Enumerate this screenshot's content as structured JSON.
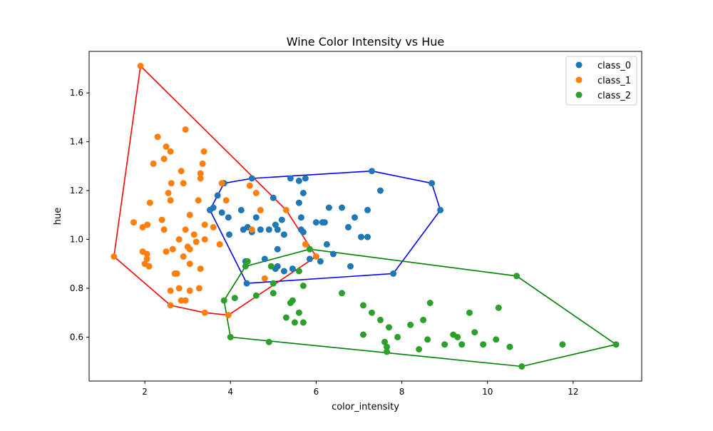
{
  "chart_data": {
    "type": "scatter",
    "title": "Wine Color Intensity vs Hue",
    "xlabel": "color_intensity",
    "ylabel": "hue",
    "xlim": [
      0.7,
      13.6
    ],
    "ylim": [
      0.42,
      1.77
    ],
    "xticks": [
      2,
      4,
      6,
      8,
      10,
      12
    ],
    "yticks": [
      0.6,
      0.8,
      1.0,
      1.2,
      1.4,
      1.6
    ],
    "xtick_labels": [
      "2",
      "4",
      "6",
      "8",
      "10",
      "12"
    ],
    "ytick_labels": [
      "0.6",
      "0.8",
      "1.0",
      "1.2",
      "1.4",
      "1.6"
    ],
    "grid": false,
    "legend_position": "top-right",
    "series": [
      {
        "name": "class_0",
        "color": "#1f77b4",
        "hull_color": "#0000ff",
        "points": [
          [
            3.52,
            1.12
          ],
          [
            3.6,
            1.13
          ],
          [
            3.7,
            1.18
          ],
          [
            3.8,
            1.11
          ],
          [
            3.85,
            1.23
          ],
          [
            3.95,
            1.09
          ],
          [
            3.97,
            1.02
          ],
          [
            4.25,
            1.12
          ],
          [
            4.3,
            1.04
          ],
          [
            4.35,
            0.91
          ],
          [
            4.38,
            0.82
          ],
          [
            4.4,
            1.05
          ],
          [
            4.5,
            1.25
          ],
          [
            4.5,
            1.03
          ],
          [
            4.6,
            1.09
          ],
          [
            4.7,
            1.04
          ],
          [
            4.8,
            0.92
          ],
          [
            4.9,
            1.04
          ],
          [
            5.0,
            1.17
          ],
          [
            5.05,
            1.06
          ],
          [
            5.05,
            0.88
          ],
          [
            5.1,
            1.04
          ],
          [
            5.1,
            0.96
          ],
          [
            5.1,
            0.89
          ],
          [
            5.2,
            1.08
          ],
          [
            5.25,
            1.02
          ],
          [
            5.25,
            0.87
          ],
          [
            5.4,
            1.25
          ],
          [
            5.45,
            0.88
          ],
          [
            5.6,
            1.24
          ],
          [
            5.6,
            1.15
          ],
          [
            5.65,
            1.09
          ],
          [
            5.65,
            1.04
          ],
          [
            5.7,
            1.19
          ],
          [
            5.7,
            1.03
          ],
          [
            5.75,
            1.25
          ],
          [
            5.85,
            0.92
          ],
          [
            6.0,
            1.07
          ],
          [
            6.1,
            0.91
          ],
          [
            6.15,
            1.07
          ],
          [
            6.2,
            1.07
          ],
          [
            6.25,
            0.98
          ],
          [
            6.3,
            1.13
          ],
          [
            6.4,
            0.94
          ],
          [
            6.6,
            1.13
          ],
          [
            6.75,
            1.05
          ],
          [
            6.8,
            0.89
          ],
          [
            6.9,
            1.09
          ],
          [
            7.05,
            1.01
          ],
          [
            7.2,
            1.12
          ],
          [
            7.2,
            1.01
          ],
          [
            7.3,
            1.28
          ],
          [
            7.5,
            1.2
          ],
          [
            7.8,
            0.86
          ],
          [
            8.7,
            1.23
          ],
          [
            8.9,
            1.12
          ]
        ],
        "hull": [
          [
            4.38,
            0.82
          ],
          [
            7.8,
            0.86
          ],
          [
            8.9,
            1.12
          ],
          [
            8.7,
            1.23
          ],
          [
            7.3,
            1.28
          ],
          [
            4.5,
            1.25
          ],
          [
            3.85,
            1.23
          ],
          [
            3.52,
            1.12
          ],
          [
            4.38,
            0.82
          ]
        ]
      },
      {
        "name": "class_1",
        "color": "#ff7f0e",
        "hull_color": "#ff0000",
        "points": [
          [
            1.28,
            0.93
          ],
          [
            1.74,
            1.07
          ],
          [
            1.9,
            1.71
          ],
          [
            1.95,
            0.95
          ],
          [
            1.95,
            1.05
          ],
          [
            2.0,
            0.9
          ],
          [
            2.05,
            0.94
          ],
          [
            2.05,
            0.92
          ],
          [
            2.06,
            1.06
          ],
          [
            2.1,
            0.89
          ],
          [
            2.12,
            1.15
          ],
          [
            2.2,
            1.31
          ],
          [
            2.3,
            1.42
          ],
          [
            2.4,
            1.08
          ],
          [
            2.45,
            1.33
          ],
          [
            2.45,
            1.04
          ],
          [
            2.5,
            1.38
          ],
          [
            2.5,
            0.95
          ],
          [
            2.55,
            1.19
          ],
          [
            2.6,
            1.36
          ],
          [
            2.6,
            1.16
          ],
          [
            2.6,
            0.79
          ],
          [
            2.6,
            0.73
          ],
          [
            2.62,
            1.23
          ],
          [
            2.65,
            0.96
          ],
          [
            2.7,
            0.86
          ],
          [
            2.75,
            0.86
          ],
          [
            2.8,
            1.0
          ],
          [
            2.8,
            0.8
          ],
          [
            2.85,
            1.28
          ],
          [
            2.85,
            0.75
          ],
          [
            2.9,
            1.23
          ],
          [
            2.9,
            0.93
          ],
          [
            2.95,
            1.45
          ],
          [
            2.95,
            1.04
          ],
          [
            2.95,
            0.75
          ],
          [
            3.0,
            0.97
          ],
          [
            3.05,
            1.1
          ],
          [
            3.05,
            0.96
          ],
          [
            3.05,
            0.9
          ],
          [
            3.05,
            0.79
          ],
          [
            3.15,
            1.02
          ],
          [
            3.2,
            0.99
          ],
          [
            3.25,
            1.16
          ],
          [
            3.27,
            0.8
          ],
          [
            3.3,
            1.27
          ],
          [
            3.3,
            1.25
          ],
          [
            3.3,
            0.88
          ],
          [
            3.35,
            1.31
          ],
          [
            3.38,
            1.36
          ],
          [
            3.4,
            1.06
          ],
          [
            3.4,
            1.0
          ],
          [
            3.4,
            0.7
          ],
          [
            3.6,
            1.05
          ],
          [
            3.75,
            0.98
          ],
          [
            3.8,
            1.23
          ],
          [
            3.9,
            1.16
          ],
          [
            3.95,
            0.69
          ],
          [
            4.45,
            1.22
          ],
          [
            4.5,
            1.04
          ],
          [
            4.6,
            1.19
          ],
          [
            4.7,
            1.12
          ],
          [
            4.8,
            0.84
          ],
          [
            5.3,
            1.12
          ],
          [
            5.75,
            0.98
          ],
          [
            5.85,
            0.96
          ],
          [
            6.0,
            0.93
          ]
        ],
        "hull": [
          [
            1.28,
            0.93
          ],
          [
            1.9,
            1.71
          ],
          [
            5.3,
            1.12
          ],
          [
            6.0,
            0.93
          ],
          [
            3.95,
            0.69
          ],
          [
            3.4,
            0.7
          ],
          [
            2.6,
            0.73
          ],
          [
            1.28,
            0.93
          ]
        ]
      },
      {
        "name": "class_2",
        "color": "#2ca02c",
        "hull_color": "#008000",
        "points": [
          [
            3.85,
            0.75
          ],
          [
            4.0,
            0.6
          ],
          [
            4.1,
            0.76
          ],
          [
            4.35,
            0.89
          ],
          [
            4.4,
            0.91
          ],
          [
            4.6,
            0.77
          ],
          [
            4.9,
            0.58
          ],
          [
            4.95,
            0.89
          ],
          [
            5.0,
            0.82
          ],
          [
            5.0,
            0.78
          ],
          [
            5.3,
            0.68
          ],
          [
            5.4,
            0.74
          ],
          [
            5.45,
            0.75
          ],
          [
            5.5,
            0.66
          ],
          [
            5.6,
            0.7
          ],
          [
            5.6,
            0.87
          ],
          [
            5.7,
            0.81
          ],
          [
            5.7,
            0.66
          ],
          [
            5.85,
            0.96
          ],
          [
            6.6,
            0.78
          ],
          [
            7.1,
            0.73
          ],
          [
            7.1,
            0.61
          ],
          [
            7.3,
            0.7
          ],
          [
            7.5,
            0.67
          ],
          [
            7.6,
            0.58
          ],
          [
            7.65,
            0.56
          ],
          [
            7.65,
            0.54
          ],
          [
            7.7,
            0.64
          ],
          [
            7.9,
            0.6
          ],
          [
            8.2,
            0.65
          ],
          [
            8.4,
            0.55
          ],
          [
            8.5,
            0.67
          ],
          [
            8.6,
            0.59
          ],
          [
            8.66,
            0.74
          ],
          [
            9.0,
            0.57
          ],
          [
            9.2,
            0.61
          ],
          [
            9.3,
            0.6
          ],
          [
            9.4,
            0.57
          ],
          [
            9.58,
            0.7
          ],
          [
            9.7,
            0.62
          ],
          [
            9.9,
            0.57
          ],
          [
            10.2,
            0.59
          ],
          [
            10.26,
            0.72
          ],
          [
            10.52,
            0.56
          ],
          [
            10.68,
            0.85
          ],
          [
            10.8,
            0.48
          ],
          [
            11.75,
            0.57
          ],
          [
            13.0,
            0.57
          ]
        ],
        "hull": [
          [
            3.85,
            0.75
          ],
          [
            4.0,
            0.6
          ],
          [
            10.8,
            0.48
          ],
          [
            13.0,
            0.57
          ],
          [
            10.68,
            0.85
          ],
          [
            5.85,
            0.96
          ],
          [
            4.35,
            0.89
          ],
          [
            3.85,
            0.75
          ]
        ]
      }
    ]
  }
}
